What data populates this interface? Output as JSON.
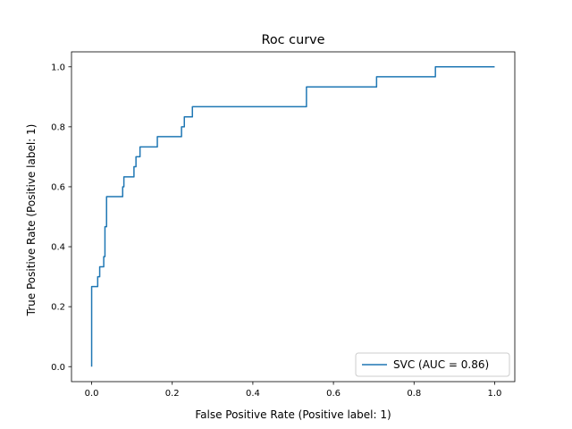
{
  "chart_data": {
    "type": "line",
    "title": "Roc curve",
    "xlabel": "False Positive Rate (Positive label: 1)",
    "ylabel": "True Positive Rate (Positive label: 1)",
    "xlim": [
      -0.05,
      1.05
    ],
    "ylim": [
      -0.05,
      1.05
    ],
    "xticks": [
      0.0,
      0.2,
      0.4,
      0.6,
      0.8,
      1.0
    ],
    "yticks": [
      0.0,
      0.2,
      0.4,
      0.6,
      0.8,
      1.0
    ],
    "xtick_labels": [
      "0.0",
      "0.2",
      "0.4",
      "0.6",
      "0.8",
      "1.0"
    ],
    "ytick_labels": [
      "0.0",
      "0.2",
      "0.4",
      "0.6",
      "0.8",
      "1.0"
    ],
    "grid": false,
    "legend_position": "lower-right",
    "series": [
      {
        "name": "SVC (AUC = 0.86)",
        "color": "#1f77b4",
        "x": [
          0.0,
          0.0,
          0.0,
          0.015,
          0.015,
          0.02,
          0.02,
          0.03,
          0.03,
          0.033,
          0.033,
          0.037,
          0.037,
          0.077,
          0.077,
          0.08,
          0.08,
          0.105,
          0.105,
          0.11,
          0.11,
          0.12,
          0.12,
          0.163,
          0.163,
          0.223,
          0.223,
          0.23,
          0.23,
          0.25,
          0.25,
          0.533,
          0.533,
          0.707,
          0.707,
          0.853,
          0.853,
          1.0
        ],
        "y": [
          0.0,
          0.0,
          0.267,
          0.267,
          0.3,
          0.3,
          0.333,
          0.333,
          0.367,
          0.367,
          0.467,
          0.467,
          0.567,
          0.567,
          0.6,
          0.6,
          0.633,
          0.633,
          0.667,
          0.667,
          0.7,
          0.7,
          0.733,
          0.733,
          0.767,
          0.767,
          0.8,
          0.8,
          0.833,
          0.833,
          0.867,
          0.867,
          0.933,
          0.933,
          0.967,
          0.967,
          1.0,
          1.0
        ]
      }
    ]
  }
}
